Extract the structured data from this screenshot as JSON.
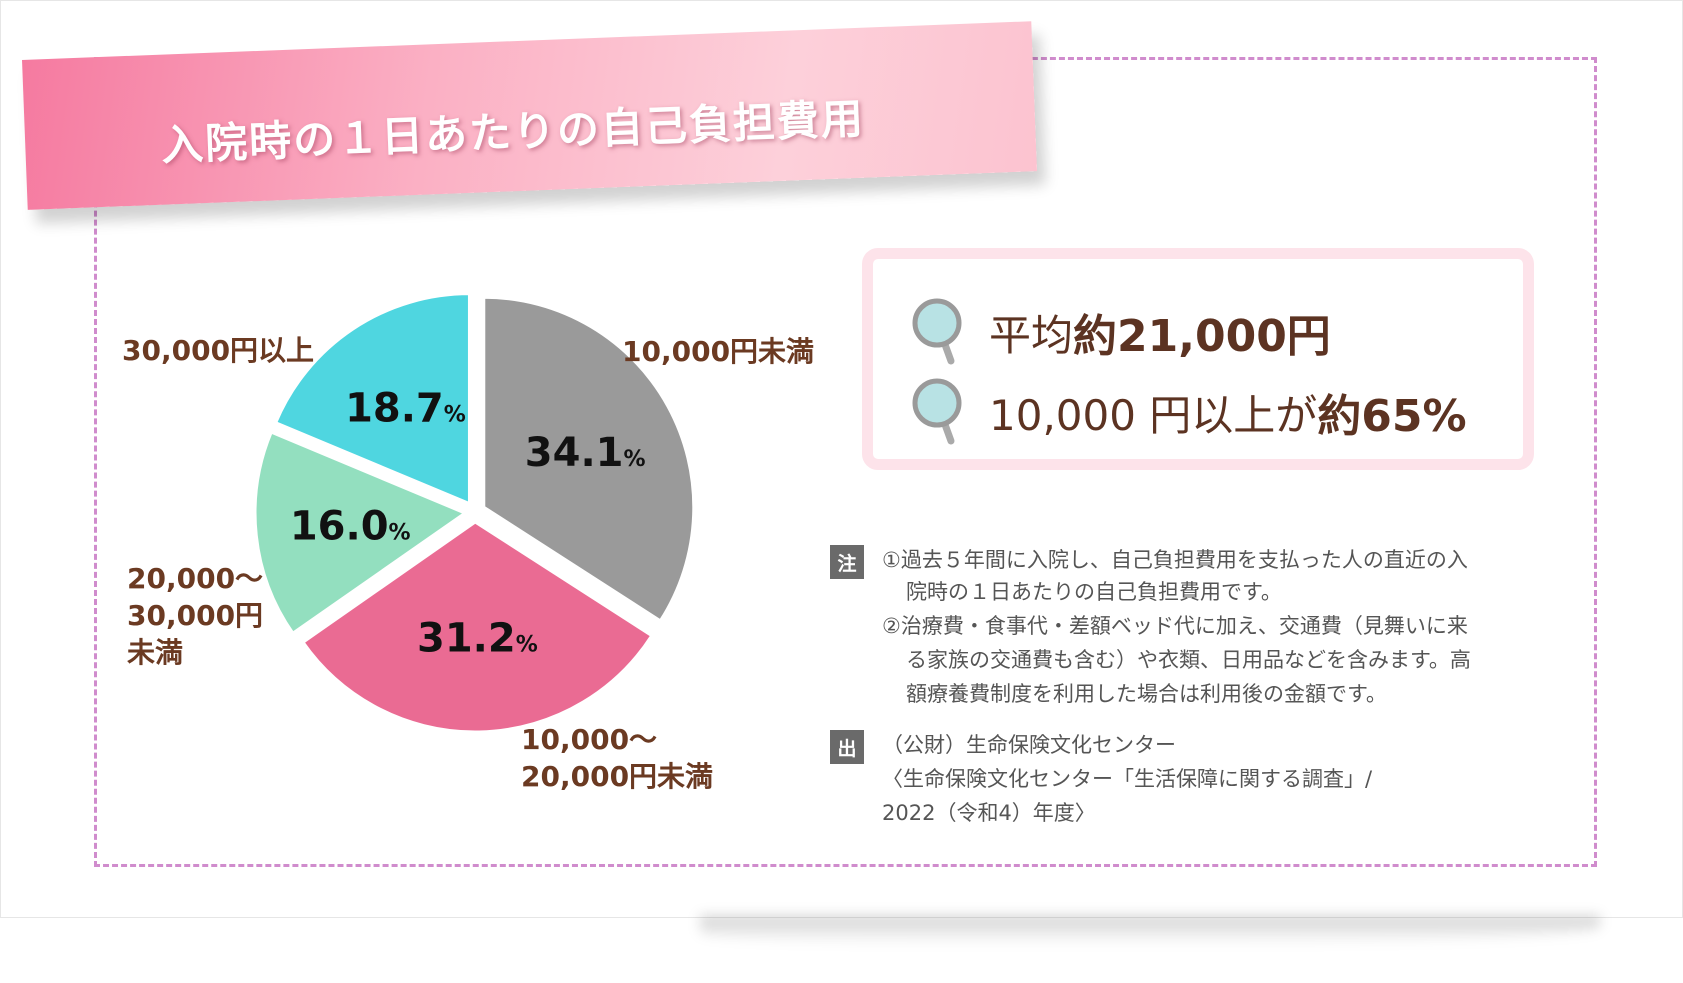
{
  "title": "入院時の１日あたりの自己負担費用",
  "summary": {
    "avg_label": "平均",
    "avg_value": "約21,000円",
    "share_label": "10,000 円以上が",
    "share_value": "約65%"
  },
  "notes": {
    "note_tag": "注",
    "note_lines": [
      "①過去５年間に入院し、自己負担費用を支払った人の直近の入",
      "院時の１日あたりの自己負担費用です。",
      "②治療費・食事代・差額ベッド代に加え、交通費（見舞いに来",
      "る家族の交通費も含む）や衣類、日用品などを含みます。高",
      "額療養費制度を利用した場合は利用後の金額です。"
    ],
    "source_tag": "出",
    "source_lines": [
      "（公財）生命保険文化センター",
      "〈生命保険文化センター「生活保障に関する調査」/",
      "2022（令和4）年度〉"
    ]
  },
  "colors": {
    "under10k": "#9a9a9a",
    "10k_20k": "#ea6b93",
    "20k_30k": "#93dfbf",
    "over30k": "#4fd6e0",
    "label_brown": "#6b3a22",
    "border_pink": "#d08ccd"
  },
  "chart_data": {
    "type": "pie",
    "categories": [
      "10,000円未満",
      "10,000～20,000円未満",
      "20,000～30,000円未満",
      "30,000円以上"
    ],
    "values": [
      34.1,
      31.2,
      16.0,
      18.7
    ],
    "value_labels": [
      "34.1",
      "31.2",
      "16.0",
      "18.7"
    ],
    "unit": "%",
    "category_lines": [
      [
        "10,000円未満"
      ],
      [
        "10,000～",
        "20,000円未満"
      ],
      [
        "20,000～",
        "30,000円",
        "未満"
      ],
      [
        "30,000円以上"
      ]
    ]
  }
}
